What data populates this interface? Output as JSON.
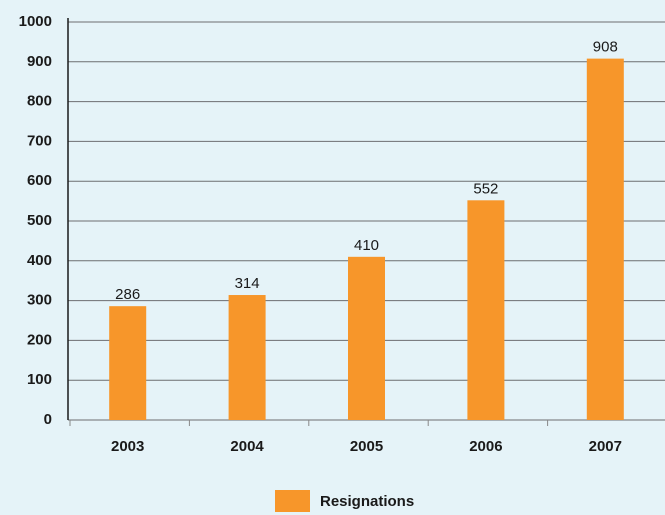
{
  "chart_data": {
    "type": "bar",
    "categories": [
      "2003",
      "2004",
      "2005",
      "2006",
      "2007"
    ],
    "series": [
      {
        "name": "Resignations",
        "color": "#f7962a",
        "values": [
          286,
          314,
          410,
          552,
          908
        ]
      }
    ],
    "ylim": [
      0,
      1000
    ],
    "yticks": [
      0,
      100,
      200,
      300,
      400,
      500,
      600,
      700,
      800,
      900,
      1000
    ],
    "grid": true
  }
}
